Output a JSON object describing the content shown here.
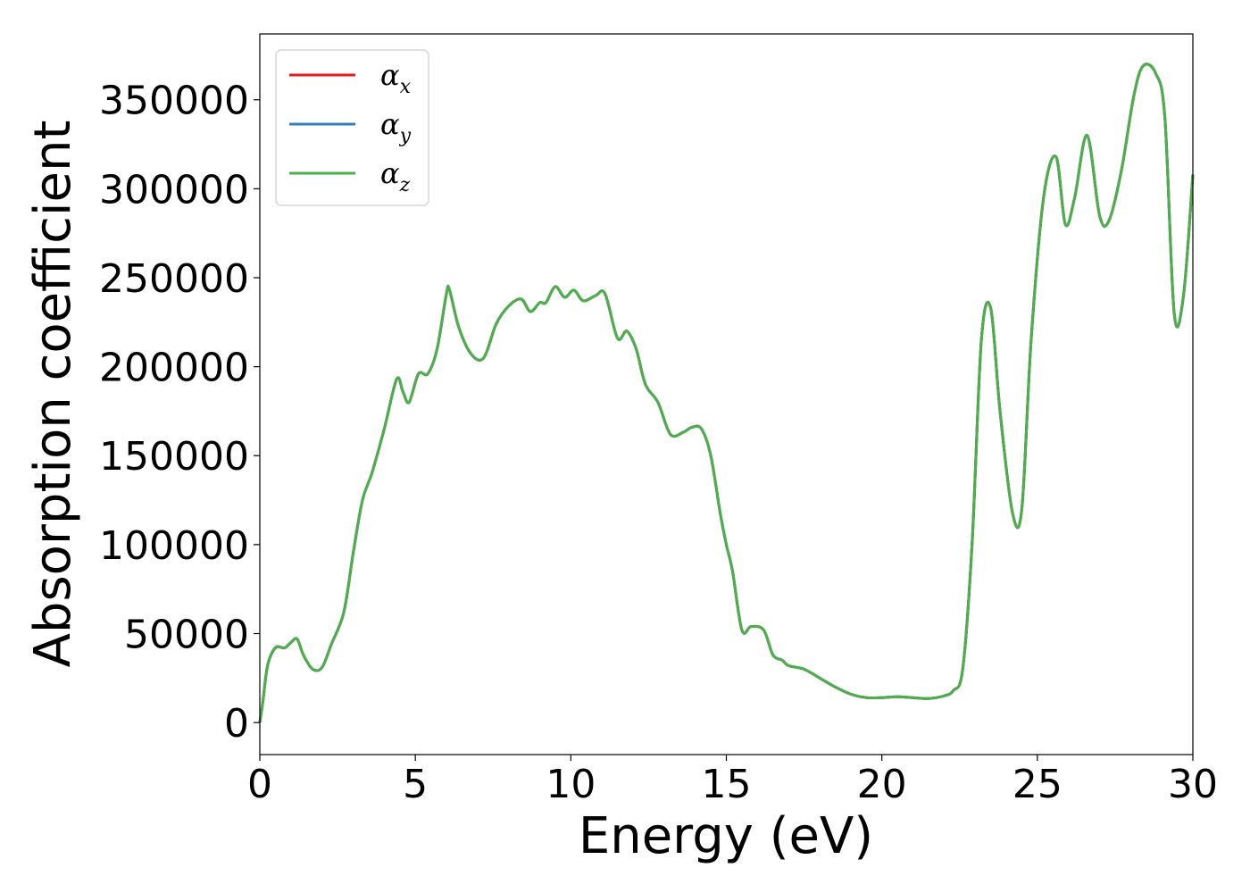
{
  "chart_data": {
    "type": "line",
    "xlabel": "Energy (eV)",
    "ylabel": "Absorption coefficient",
    "xlim": [
      0,
      30
    ],
    "ylim": [
      -18000,
      387000
    ],
    "xticks": [
      0,
      5,
      10,
      15,
      20,
      25,
      30
    ],
    "yticks": [
      0,
      50000,
      100000,
      150000,
      200000,
      250000,
      300000,
      350000
    ],
    "xtick_labels": [
      "0",
      "5",
      "10",
      "15",
      "20",
      "25",
      "30"
    ],
    "ytick_labels": [
      "0",
      "50000",
      "100000",
      "150000",
      "200000",
      "250000",
      "300000",
      "350000"
    ],
    "grid": false,
    "legend_position": "top-left",
    "series": [
      {
        "name": "α_x",
        "symbol": "α",
        "subscript": "x",
        "color": "#e41a1c",
        "x": [
          0,
          0.1,
          0.25,
          0.5,
          0.8,
          1.0,
          1.2,
          1.4,
          1.7,
          2.0,
          2.3,
          2.7,
          3.0,
          3.3,
          3.6,
          4.0,
          4.4,
          4.6,
          4.8,
          5.1,
          5.4,
          5.7,
          6.0,
          6.1,
          6.4,
          6.8,
          7.2,
          7.6,
          8.0,
          8.4,
          8.7,
          9.0,
          9.2,
          9.5,
          9.8,
          10.1,
          10.4,
          10.8,
          11.1,
          11.5,
          11.8,
          12.1,
          12.4,
          12.8,
          13.2,
          13.6,
          13.9,
          14.2,
          14.5,
          14.8,
          15.0,
          15.2,
          15.5,
          15.8,
          16.2,
          16.5,
          16.8,
          17.0,
          17.5,
          18.0,
          18.5,
          19.0,
          19.5,
          20.0,
          20.5,
          21.0,
          21.5,
          22.0,
          22.3,
          22.6,
          22.9,
          23.2,
          23.5,
          23.8,
          24.2,
          24.5,
          24.8,
          25.2,
          25.6,
          25.9,
          26.2,
          26.6,
          27.0,
          27.3,
          27.7,
          28.1,
          28.4,
          28.8,
          29.1,
          29.4,
          29.7,
          30.0
        ],
        "y": [
          0,
          12000,
          32000,
          42000,
          42000,
          45000,
          47000,
          38000,
          30000,
          31000,
          44000,
          62000,
          95000,
          125000,
          140000,
          165000,
          193000,
          186000,
          180000,
          196000,
          196000,
          210000,
          241000,
          243000,
          222000,
          207000,
          205000,
          224000,
          234000,
          238000,
          231000,
          236000,
          236000,
          245000,
          239000,
          243000,
          237000,
          240000,
          241000,
          216000,
          220000,
          210000,
          190000,
          180000,
          162000,
          163000,
          166000,
          165000,
          150000,
          118000,
          100000,
          85000,
          52000,
          54000,
          52000,
          38000,
          35000,
          32000,
          30000,
          25000,
          20000,
          16000,
          14000,
          14000,
          14500,
          14000,
          13500,
          15000,
          18000,
          30000,
          100000,
          215000,
          233000,
          175000,
          118000,
          120000,
          215000,
          295000,
          318000,
          280000,
          295000,
          330000,
          285000,
          282000,
          310000,
          352000,
          369000,
          365000,
          340000,
          230000,
          240000,
          308000
        ]
      },
      {
        "name": "α_y",
        "symbol": "α",
        "subscript": "y",
        "color": "#377eb8",
        "x": [
          0,
          0.1,
          0.25,
          0.5,
          0.8,
          1.0,
          1.2,
          1.4,
          1.7,
          2.0,
          2.3,
          2.7,
          3.0,
          3.3,
          3.6,
          4.0,
          4.4,
          4.6,
          4.8,
          5.1,
          5.4,
          5.7,
          6.0,
          6.1,
          6.4,
          6.8,
          7.2,
          7.6,
          8.0,
          8.4,
          8.7,
          9.0,
          9.2,
          9.5,
          9.8,
          10.1,
          10.4,
          10.8,
          11.1,
          11.5,
          11.8,
          12.1,
          12.4,
          12.8,
          13.2,
          13.6,
          13.9,
          14.2,
          14.5,
          14.8,
          15.0,
          15.2,
          15.5,
          15.8,
          16.2,
          16.5,
          16.8,
          17.0,
          17.5,
          18.0,
          18.5,
          19.0,
          19.5,
          20.0,
          20.5,
          21.0,
          21.5,
          22.0,
          22.3,
          22.6,
          22.9,
          23.2,
          23.5,
          23.8,
          24.2,
          24.5,
          24.8,
          25.2,
          25.6,
          25.9,
          26.2,
          26.6,
          27.0,
          27.3,
          27.7,
          28.1,
          28.4,
          28.8,
          29.1,
          29.4,
          29.7,
          30.0
        ],
        "y": [
          0,
          12000,
          32000,
          42000,
          42000,
          45000,
          47000,
          38000,
          30000,
          31000,
          44000,
          62000,
          95000,
          125000,
          140000,
          165000,
          193000,
          186000,
          180000,
          196000,
          196000,
          210000,
          241000,
          243000,
          222000,
          207000,
          205000,
          224000,
          234000,
          238000,
          231000,
          236000,
          236000,
          245000,
          239000,
          243000,
          237000,
          240000,
          241000,
          216000,
          220000,
          210000,
          190000,
          180000,
          162000,
          163000,
          166000,
          165000,
          150000,
          118000,
          100000,
          85000,
          52000,
          54000,
          52000,
          38000,
          35000,
          32000,
          30000,
          25000,
          20000,
          16000,
          14000,
          14000,
          14500,
          14000,
          13500,
          15000,
          18000,
          30000,
          100000,
          215000,
          233000,
          175000,
          118000,
          120000,
          215000,
          295000,
          318000,
          280000,
          295000,
          330000,
          285000,
          282000,
          310000,
          352000,
          369000,
          365000,
          340000,
          230000,
          240000,
          308000
        ]
      },
      {
        "name": "α_z",
        "symbol": "α",
        "subscript": "z",
        "color": "#4daf4a",
        "x": [
          0,
          0.1,
          0.25,
          0.5,
          0.8,
          1.0,
          1.2,
          1.4,
          1.7,
          2.0,
          2.3,
          2.7,
          3.0,
          3.3,
          3.6,
          4.0,
          4.4,
          4.6,
          4.8,
          5.1,
          5.4,
          5.7,
          6.0,
          6.1,
          6.4,
          6.8,
          7.2,
          7.6,
          8.0,
          8.4,
          8.7,
          9.0,
          9.2,
          9.5,
          9.8,
          10.1,
          10.4,
          10.8,
          11.1,
          11.5,
          11.8,
          12.1,
          12.4,
          12.8,
          13.2,
          13.6,
          13.9,
          14.2,
          14.5,
          14.8,
          15.0,
          15.2,
          15.5,
          15.8,
          16.2,
          16.5,
          16.8,
          17.0,
          17.5,
          18.0,
          18.5,
          19.0,
          19.5,
          20.0,
          20.5,
          21.0,
          21.5,
          22.0,
          22.3,
          22.6,
          22.9,
          23.2,
          23.5,
          23.8,
          24.2,
          24.5,
          24.8,
          25.2,
          25.6,
          25.9,
          26.2,
          26.6,
          27.0,
          27.3,
          27.7,
          28.1,
          28.4,
          28.8,
          29.1,
          29.4,
          29.7,
          30.0
        ],
        "y": [
          0,
          12000,
          32000,
          42000,
          42000,
          45000,
          47000,
          38000,
          30000,
          31000,
          44000,
          62000,
          95000,
          125000,
          140000,
          165000,
          193000,
          186000,
          180000,
          196000,
          196000,
          210000,
          241000,
          243000,
          222000,
          207000,
          205000,
          224000,
          234000,
          238000,
          231000,
          236000,
          236000,
          245000,
          239000,
          243000,
          237000,
          240000,
          241000,
          216000,
          220000,
          210000,
          190000,
          180000,
          162000,
          163000,
          166000,
          165000,
          150000,
          118000,
          100000,
          85000,
          52000,
          54000,
          52000,
          38000,
          35000,
          32000,
          30000,
          25000,
          20000,
          16000,
          14000,
          14000,
          14500,
          14000,
          13500,
          15000,
          18000,
          30000,
          100000,
          215000,
          233000,
          175000,
          118000,
          120000,
          215000,
          295000,
          318000,
          280000,
          295000,
          330000,
          285000,
          282000,
          310000,
          352000,
          369000,
          365000,
          340000,
          230000,
          240000,
          308000
        ]
      }
    ]
  }
}
